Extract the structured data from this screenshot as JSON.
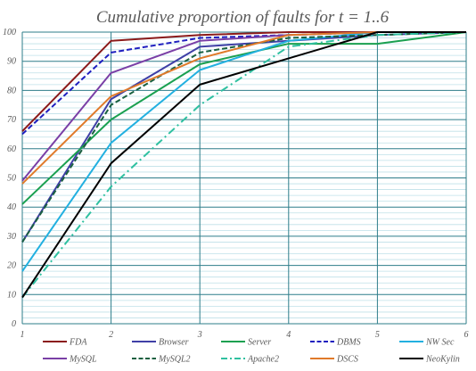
{
  "chart_data": {
    "type": "line",
    "title": "Cumulative proportion of faults for t = 1..6",
    "xlabel": "",
    "ylabel": "",
    "x": [
      1,
      2,
      3,
      4,
      5,
      6
    ],
    "xlim": [
      1,
      6
    ],
    "ylim": [
      0,
      100
    ],
    "y_major_ticks": [
      0,
      10,
      20,
      30,
      40,
      50,
      60,
      70,
      80,
      90,
      100
    ],
    "grid": true,
    "legend_position": "bottom",
    "series": [
      {
        "name": "FDA",
        "color": "#8b1a1a",
        "dash": "solid",
        "values": [
          66,
          97,
          99,
          100,
          100,
          100
        ]
      },
      {
        "name": "Browser",
        "color": "#3f3fa6",
        "dash": "solid",
        "values": [
          28,
          77,
          95,
          97,
          99,
          100
        ]
      },
      {
        "name": "Server",
        "color": "#1aa050",
        "dash": "solid",
        "values": [
          41,
          70,
          89,
          96,
          96,
          100
        ]
      },
      {
        "name": "DBMS",
        "color": "#1f1fbf",
        "dash": "dash",
        "values": [
          65,
          93,
          98,
          99,
          100,
          100
        ]
      },
      {
        "name": "NW Sec",
        "color": "#22b0e0",
        "dash": "solid",
        "values": [
          18,
          62,
          87,
          97,
          100,
          100
        ]
      },
      {
        "name": "MySQL",
        "color": "#7a3fa6",
        "dash": "solid",
        "values": [
          49,
          86,
          97,
          99,
          100,
          100
        ]
      },
      {
        "name": "MySQL2",
        "color": "#1a6040",
        "dash": "dash",
        "values": [
          28,
          75,
          93,
          98,
          99,
          100
        ]
      },
      {
        "name": "Apache2",
        "color": "#2fc0a0",
        "dash": "dashdot",
        "values": [
          9,
          47,
          75,
          95,
          99,
          100
        ]
      },
      {
        "name": "DSCS",
        "color": "#e07a2a",
        "dash": "solid",
        "values": [
          48,
          78,
          91,
          99,
          100,
          100
        ]
      },
      {
        "name": "NeoKylin",
        "color": "#000000",
        "dash": "solid",
        "values": [
          9,
          55,
          82,
          91,
          100,
          100
        ]
      }
    ]
  }
}
